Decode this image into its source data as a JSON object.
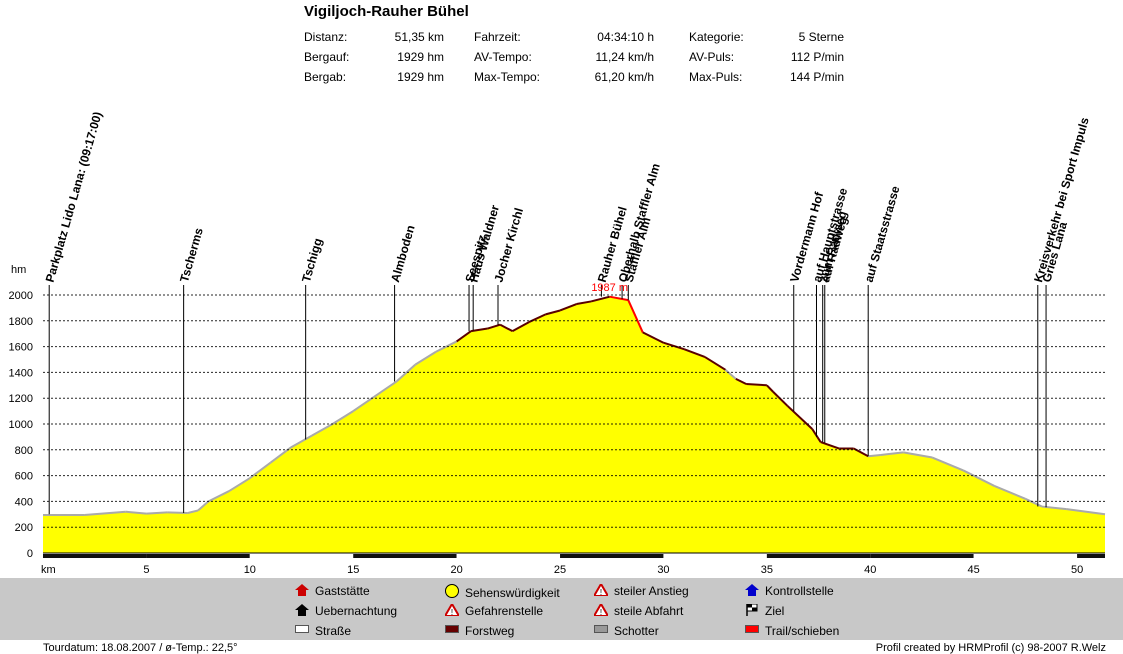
{
  "header": {
    "title": "Vigiljoch-Rauher Bühel",
    "stats": [
      {
        "label": "Distanz:",
        "value": "51,35 km"
      },
      {
        "label": "Bergauf:",
        "value": "1929 hm"
      },
      {
        "label": "Bergab:",
        "value": "1929 hm"
      },
      {
        "label": "Fahrzeit:",
        "value": "04:34:10 h"
      },
      {
        "label": "AV-Tempo:",
        "value": "11,24 km/h"
      },
      {
        "label": "Max-Tempo:",
        "value": "61,20 km/h"
      },
      {
        "label": "Kategorie:",
        "value": "5 Sterne"
      },
      {
        "label": "AV-Puls:",
        "value": "112 P/min"
      },
      {
        "label": "Max-Puls:",
        "value": "144 P/min"
      }
    ]
  },
  "chart_data": {
    "type": "area",
    "title": "",
    "xlabel": "km",
    "ylabel": "hm",
    "xlim": [
      0,
      51.35
    ],
    "ylim": [
      0,
      2000
    ],
    "x_ticks": [
      5,
      10,
      15,
      20,
      25,
      30,
      35,
      40,
      45,
      50
    ],
    "y_ticks": [
      0,
      200,
      400,
      600,
      800,
      1000,
      1200,
      1400,
      1600,
      1800,
      2000
    ],
    "grid": true,
    "fill_color": "#ffff00",
    "max_label": "1987 m",
    "max_point": {
      "x": 27.4,
      "y": 1987
    },
    "profile": [
      {
        "x": 0,
        "y": 295
      },
      {
        "x": 2,
        "y": 295
      },
      {
        "x": 4,
        "y": 320
      },
      {
        "x": 5,
        "y": 305
      },
      {
        "x": 6,
        "y": 315
      },
      {
        "x": 7,
        "y": 310
      },
      {
        "x": 7.5,
        "y": 330
      },
      {
        "x": 8,
        "y": 400
      },
      {
        "x": 9,
        "y": 480
      },
      {
        "x": 10,
        "y": 580
      },
      {
        "x": 11,
        "y": 700
      },
      {
        "x": 12,
        "y": 820
      },
      {
        "x": 13,
        "y": 910
      },
      {
        "x": 14,
        "y": 1000
      },
      {
        "x": 15,
        "y": 1100
      },
      {
        "x": 16,
        "y": 1210
      },
      {
        "x": 17.1,
        "y": 1330
      },
      {
        "x": 18,
        "y": 1460
      },
      {
        "x": 19,
        "y": 1560
      },
      {
        "x": 20,
        "y": 1640
      },
      {
        "x": 20.7,
        "y": 1720
      },
      {
        "x": 21.5,
        "y": 1740
      },
      {
        "x": 22.1,
        "y": 1770
      },
      {
        "x": 22.7,
        "y": 1720
      },
      {
        "x": 23.5,
        "y": 1790
      },
      {
        "x": 24.3,
        "y": 1850
      },
      {
        "x": 25,
        "y": 1880
      },
      {
        "x": 25.8,
        "y": 1930
      },
      {
        "x": 26.5,
        "y": 1950
      },
      {
        "x": 27.4,
        "y": 1987
      },
      {
        "x": 28.3,
        "y": 1960
      },
      {
        "x": 29,
        "y": 1710
      },
      {
        "x": 30,
        "y": 1630
      },
      {
        "x": 31,
        "y": 1580
      },
      {
        "x": 32,
        "y": 1520
      },
      {
        "x": 33,
        "y": 1420
      },
      {
        "x": 33.5,
        "y": 1350
      },
      {
        "x": 34,
        "y": 1310
      },
      {
        "x": 35,
        "y": 1300
      },
      {
        "x": 35.3,
        "y": 1250
      },
      {
        "x": 36,
        "y": 1140
      },
      {
        "x": 37.2,
        "y": 960
      },
      {
        "x": 37.6,
        "y": 860
      },
      {
        "x": 38.5,
        "y": 810
      },
      {
        "x": 39.2,
        "y": 810
      },
      {
        "x": 39.9,
        "y": 750
      },
      {
        "x": 40.5,
        "y": 760
      },
      {
        "x": 41.6,
        "y": 780
      },
      {
        "x": 43,
        "y": 740
      },
      {
        "x": 44.5,
        "y": 640
      },
      {
        "x": 46,
        "y": 520
      },
      {
        "x": 47.5,
        "y": 420
      },
      {
        "x": 48.3,
        "y": 360
      },
      {
        "x": 49.5,
        "y": 340
      },
      {
        "x": 51.35,
        "y": 300
      }
    ],
    "trail_segment": [
      27.4,
      29.0
    ],
    "waypoints": [
      {
        "name": "Parkplatz Lido Lana: (09:17:00)",
        "x": 0.3,
        "y": 300
      },
      {
        "name": "Tscherms",
        "x": 6.8,
        "y": 310
      },
      {
        "name": "Tschigg",
        "x": 12.7,
        "y": 880
      },
      {
        "name": "Almboden",
        "x": 17.0,
        "y": 1330
      },
      {
        "name": "Seespitz",
        "x": 20.6,
        "y": 1720
      },
      {
        "name": "Haus Waldner",
        "x": 20.8,
        "y": 1725
      },
      {
        "name": "Jocher Kirchl",
        "x": 22.0,
        "y": 1770
      },
      {
        "name": "Rauher Bühel",
        "x": 27.0,
        "y": 1987
      },
      {
        "name": "Oberhalb Staffler Alm",
        "x": 28.0,
        "y": 1970
      },
      {
        "name": "Staffler Alm",
        "x": 28.3,
        "y": 1960
      },
      {
        "name": "Vordermann Hof",
        "x": 36.3,
        "y": 1100
      },
      {
        "name": "auf Hauptstrasse",
        "x": 37.4,
        "y": 900
      },
      {
        "name": "zum Radweg",
        "x": 37.7,
        "y": 860
      },
      {
        "name": "auf Radweg",
        "x": 37.8,
        "y": 855
      },
      {
        "name": "auf Staatsstrasse",
        "x": 39.9,
        "y": 750
      },
      {
        "name": "Kreisverkehr bei Sport Impuls",
        "x": 48.1,
        "y": 360
      },
      {
        "name": "Gries Lana",
        "x": 48.5,
        "y": 355
      }
    ],
    "km_band": [
      "dark",
      "dark",
      "light",
      "dark",
      "light",
      "dark",
      "light",
      "dark",
      "dark",
      "light",
      "dark"
    ]
  },
  "legend": {
    "items": [
      {
        "label": "Gaststätte",
        "icon": "house-red-icon",
        "color": "#cc0000"
      },
      {
        "label": "Uebernachtung",
        "icon": "bed-house-icon",
        "color": "#000000"
      },
      {
        "label": "Straße",
        "icon": "road-white-bar-icon",
        "color": "#ffffff"
      },
      {
        "label": "Sehenswürdigkeit",
        "icon": "smiley-icon",
        "color": "#ffff00"
      },
      {
        "label": "Gefahrenstelle",
        "icon": "warning-triangle-icon",
        "color": "#cc0000"
      },
      {
        "label": "Forstweg",
        "icon": "forest-road-bar-icon",
        "color": "#660000"
      },
      {
        "label": "steiler Anstieg",
        "icon": "steep-climb-icon",
        "color": "#cc0000"
      },
      {
        "label": "steile Abfahrt",
        "icon": "steep-descent-icon",
        "color": "#cc0000"
      },
      {
        "label": "Schotter",
        "icon": "gravel-bar-icon",
        "color": "#999999"
      },
      {
        "label": "Kontrollstelle",
        "icon": "checkpoint-blue-icon",
        "color": "#0000cc"
      },
      {
        "label": "Ziel",
        "icon": "finish-flag-icon",
        "color": "#000000"
      },
      {
        "label": "Trail/schieben",
        "icon": "trail-red-bar-icon",
        "color": "#ff0000"
      }
    ]
  },
  "footer": {
    "left": "Tourdatum: 18.08.2007  /  ø-Temp.: 22,5°",
    "right": "Profil created by HRMProfil (c) 98-2007 R.Welz"
  }
}
